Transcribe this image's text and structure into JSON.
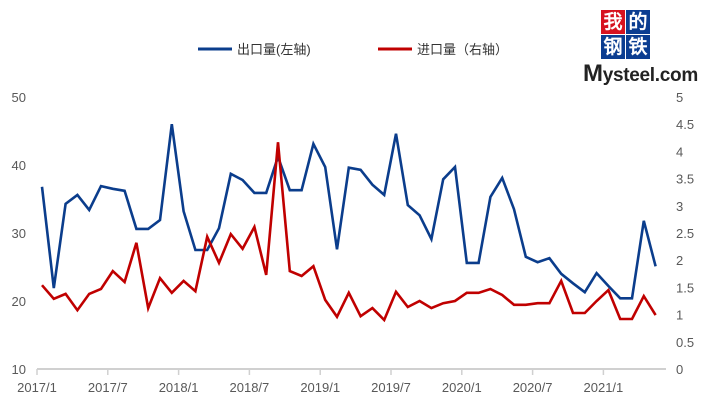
{
  "logo": {
    "chars": [
      "我",
      "的",
      "钢",
      "铁"
    ],
    "brand": "Mysteel.com",
    "colors": [
      "#d6121f",
      "#0b3d91",
      "#0b3d91",
      "#0b3d91"
    ]
  },
  "chart_data": {
    "type": "line",
    "title": "",
    "start": "2017/1",
    "x_tick_labels": [
      "2017/1",
      "2017/7",
      "2018/1",
      "2018/7",
      "2019/1",
      "2019/7",
      "2020/1",
      "2020/7",
      "2021/1"
    ],
    "y_left": {
      "ylim": [
        10,
        50
      ],
      "ticks": [
        "10",
        "20",
        "30",
        "40",
        "50"
      ]
    },
    "y_right": {
      "ylim": [
        0,
        5
      ],
      "ticks": [
        "0",
        "0.5",
        "1",
        "1.5",
        "2",
        "2.5",
        "3",
        "3.5",
        "4",
        "4.5",
        "5"
      ]
    },
    "grid": false,
    "legend_position": "top-center",
    "series": [
      {
        "name": "出口量(左轴)",
        "axis": "left",
        "color": "#0b3d8c",
        "values": [
          36.8,
          21.9,
          34.3,
          35.6,
          33.4,
          36.9,
          36.5,
          36.2,
          30.6,
          30.6,
          31.9,
          46.0,
          33.2,
          27.5,
          27.5,
          30.7,
          38.7,
          37.8,
          35.9,
          35.9,
          41.2,
          36.3,
          36.3,
          43.1,
          39.7,
          27.6,
          39.6,
          39.3,
          37.1,
          35.6,
          44.6,
          34.1,
          32.6,
          29.1,
          37.9,
          39.7,
          25.6,
          25.6,
          35.3,
          38.1,
          33.5,
          26.5,
          25.7,
          26.3,
          24.0,
          22.6,
          21.3,
          24.1,
          22.2,
          20.4,
          20.4,
          31.8,
          25.1
        ]
      },
      {
        "name": "进口量（右轴）",
        "axis": "right",
        "color": "#c00000",
        "values": [
          1.54,
          1.29,
          1.38,
          1.08,
          1.38,
          1.47,
          1.8,
          1.6,
          2.32,
          1.12,
          1.67,
          1.4,
          1.62,
          1.43,
          2.43,
          1.95,
          2.48,
          2.21,
          2.61,
          1.73,
          4.17,
          1.8,
          1.71,
          1.89,
          1.27,
          0.96,
          1.4,
          0.97,
          1.12,
          0.9,
          1.42,
          1.14,
          1.25,
          1.12,
          1.21,
          1.25,
          1.4,
          1.4,
          1.47,
          1.36,
          1.18,
          1.18,
          1.21,
          1.21,
          1.62,
          1.03,
          1.03,
          1.25,
          1.45,
          0.92,
          0.92,
          1.34,
          0.99
        ]
      }
    ]
  }
}
